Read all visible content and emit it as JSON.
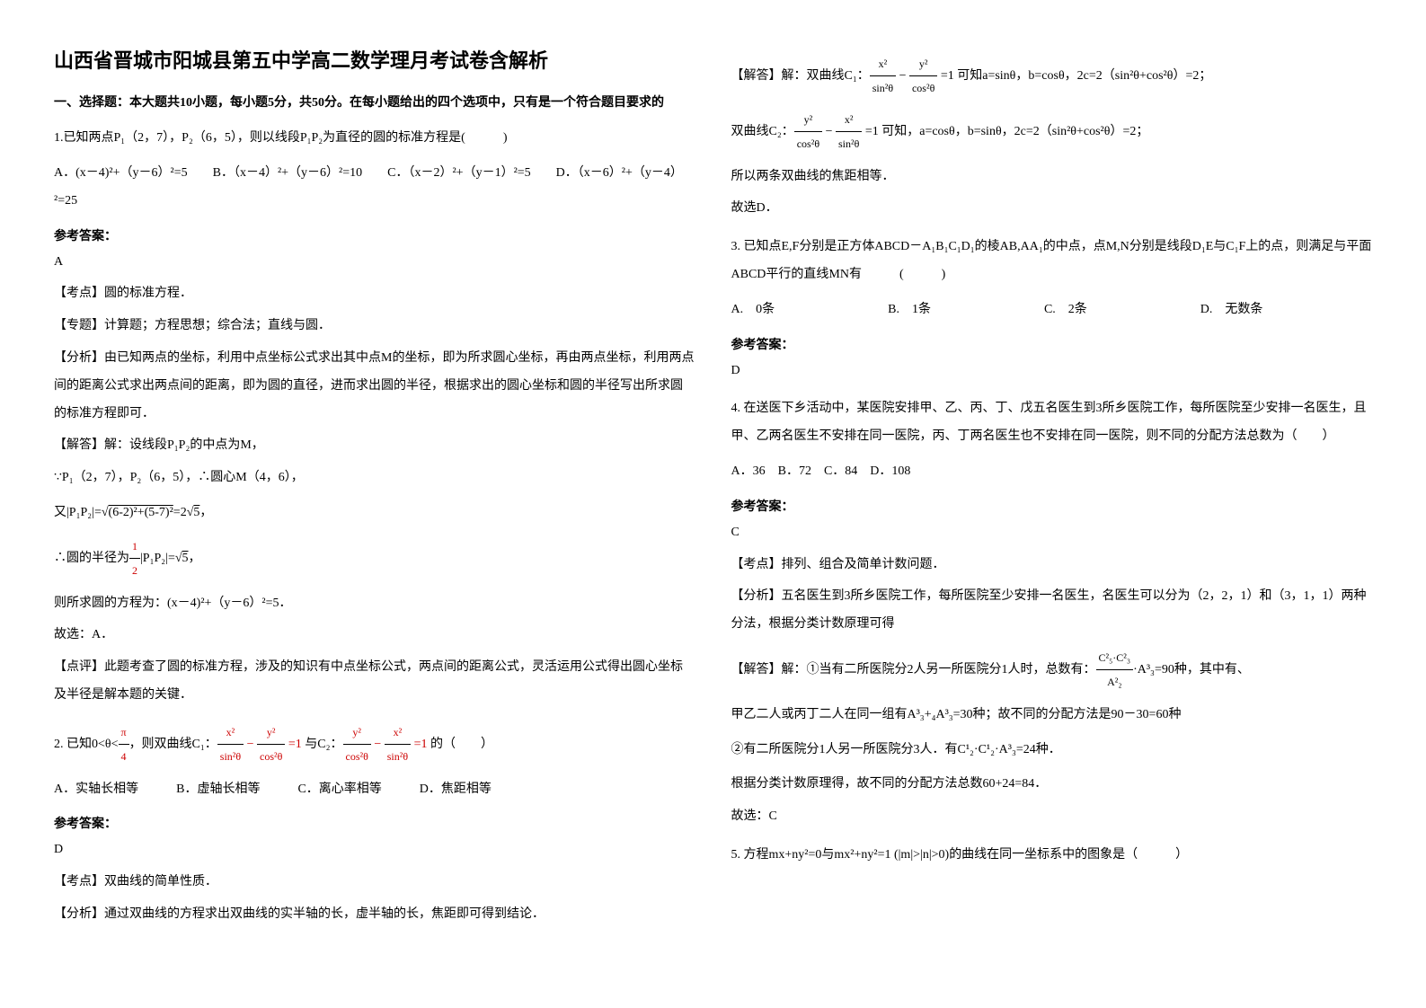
{
  "title": "山西省晋城市阳城县第五中学高二数学理月考试卷含解析",
  "section1_header": "一、选择题：本大题共10小题，每小题5分，共50分。在每小题给出的四个选项中，只有是一个符合题目要求的",
  "q1": {
    "stem": "1.已知两点P₁（2，7），P₂（6，5），则以线段P₁P₂为直径的圆的标准方程是(　　　)",
    "options": "A．(x－4)²+（y－6）²=5　　B．（x－4）²+（y－6）²=10　　C．（x－2）²+（y－1）²=5　　D．（x－6）²+（y－4）²=25",
    "answer_label": "参考答案：",
    "answer": "A",
    "kaodian": "【考点】圆的标准方程．",
    "zhuanti": "【专题】计算题；方程思想；综合法；直线与圆．",
    "fenxi": "【分析】由已知两点的坐标，利用中点坐标公式求出其中点M的坐标，即为所求圆心坐标，再由两点坐标，利用两点间的距离公式求出两点间的距离，即为圆的直径，进而求出圆的半径，根据求出的圆心坐标和圆的半径写出所求圆的标准方程即可．",
    "jieda_label": "【解答】解：设线段P₁P₂的中点为M，",
    "jieda_line1": "∵P₁（2，7），P₂（6，5），∴圆心M（4，6），",
    "jieda_line2_prefix": "又|P₁P₂|=",
    "jieda_line2_sqrt": "(6-2)²+(5-7)²",
    "jieda_line2_suffix": "=2",
    "jieda_line2_sqrt2": "5",
    "jieda_line2_end": "，",
    "jieda_line3_prefix": "∴圆的半径为",
    "jieda_line3_mid": "|P₁P₂|=",
    "jieda_line3_sqrt": "5",
    "jieda_line3_end": "，",
    "jieda_line4": "则所求圆的方程为：(x－4)²+（y－6）²=5．",
    "jieda_line5": "故选：A．",
    "dianping": "【点评】此题考查了圆的标准方程，涉及的知识有中点坐标公式，两点间的距离公式，灵活运用公式得出圆心坐标及半径是解本题的关键．"
  },
  "q2": {
    "stem_prefix": "2. 已知0<θ<",
    "stem_frac_num": "π",
    "stem_frac_den": "4",
    "stem_mid1": "，则双曲线C₁：",
    "eq1_t1_num": "x²",
    "eq1_t1_den": "sin²θ",
    "eq1_t2_num": "y²",
    "eq1_t2_den": "cos²θ",
    "stem_mid2": " 与C₂：",
    "eq2_t1_num": "y²",
    "eq2_t1_den": "cos²θ",
    "eq2_t2_num": "x²",
    "eq2_t2_den": "sin²θ",
    "stem_end": " 的（　　）",
    "options": "A．实轴长相等　　　B．虚轴长相等　　　C．离心率相等　　　D．焦距相等",
    "answer_label": "参考答案：",
    "answer": "D",
    "kaodian": "【考点】双曲线的简单性质．",
    "fenxi": "【分析】通过双曲线的方程求出双曲线的实半轴的长，虚半轴的长，焦距即可得到结论．"
  },
  "q2_right": {
    "jieda_prefix": "【解答】解：双曲线C₁：",
    "jieda_mid1": "可知a=sinθ，b=cosθ，2c=2（sin²θ+cos²θ）=2；",
    "jieda_prefix2": "双曲线C₂：",
    "jieda_mid2": "可知，a=cosθ，b=sinθ，2c=2（sin²θ+cos²θ）=2；",
    "jieda_line3": "所以两条双曲线的焦距相等．",
    "jieda_line4": "故选D．"
  },
  "q3": {
    "stem": "3. 已知点E,F分别是正方体ABCD－A₁B₁C₁D₁的棱AB,AA₁的中点，点M,N分别是线段D₁E与C₁F上的点，则满足与平面ABCD平行的直线MN有　　　(　　　)",
    "options": "A.　0条　　　　　　　　　B.　1条　　　　　　　　　C.　2条　　　　　　　　　D.　无数条",
    "answer_label": "参考答案：",
    "answer": "D"
  },
  "q4": {
    "stem": "4. 在送医下乡活动中，某医院安排甲、乙、丙、丁、戊五名医生到3所乡医院工作，每所医院至少安排一名医生，且甲、乙两名医生不安排在同一医院，丙、丁两名医生也不安排在同一医院，则不同的分配方法总数为（　　）",
    "options": "A．36　B．72　C．84　D．108",
    "answer_label": "参考答案：",
    "answer": "C",
    "kaodian": "【考点】排列、组合及简单计数问题．",
    "fenxi": "【分析】五名医生到3所乡医院工作，每所医院至少安排一名医生，名医生可以分为（2，2，1）和（3，1，1）两种分法，根据分类计数原理可得",
    "jieda_prefix": "【解答】解：①当有二所医院分2人另一所医院分1人时，总数有：",
    "jieda_formula1": "C²₅·C²₃",
    "jieda_formula1_den": "A²₂",
    "jieda_formula1_mid": "·A³₃",
    "jieda_suffix1": "=90种，其中有、",
    "jieda_line2_prefix": "甲乙二人或丙丁二人在同一组有",
    "jieda_line2_formula": "A³₃+₄A³₃",
    "jieda_line2_suffix": "=30种；故不同的分配方法是90－30=60种",
    "jieda_line3_prefix": "②有二所医院分1人另一所医院分3人．有",
    "jieda_line3_formula": "C¹₂·C¹₂·A³₃",
    "jieda_line3_suffix": "=24种．",
    "jieda_line4": "根据分类计数原理得，故不同的分配方法总数60+24=84．",
    "jieda_line5": "故选：C"
  },
  "q5": {
    "stem_prefix": "5. 方程",
    "stem_eq1": "mx+ny²=0",
    "stem_mid": "与",
    "stem_eq2": "mx²+ny²=1 (|m|>|n|>0)",
    "stem_suffix": "的曲线在同一坐标系中的图象是（　　　）"
  }
}
